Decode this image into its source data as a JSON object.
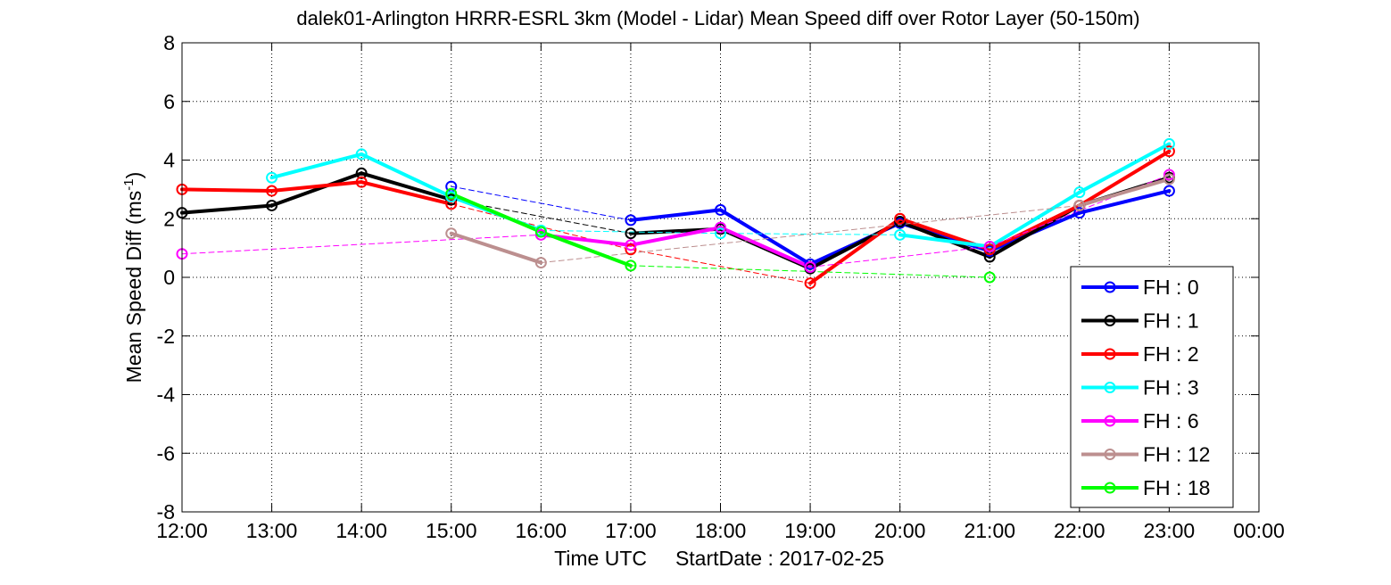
{
  "chart_data": {
    "type": "line",
    "title": "dalek01-Arlington HRRR-ESRL 3km (Model - Lidar) Mean Speed diff over Rotor Layer (50-150m)",
    "xlabel": "Time UTC     StartDate : 2017-02-25",
    "ylabel": "Mean Speed Diff (ms",
    "ylabel_sup": "-1",
    "ylabel_end": ")",
    "xlim": [
      12,
      24
    ],
    "ylim": [
      -8,
      8
    ],
    "x_ticks": [
      12,
      13,
      14,
      15,
      16,
      17,
      18,
      19,
      20,
      21,
      22,
      23,
      24
    ],
    "x_tick_labels": [
      "12:00",
      "13:00",
      "14:00",
      "15:00",
      "16:00",
      "17:00",
      "18:00",
      "19:00",
      "20:00",
      "21:00",
      "22:00",
      "23:00",
      "00:00"
    ],
    "y_ticks": [
      -8,
      -6,
      -4,
      -2,
      0,
      2,
      4,
      6,
      8
    ],
    "y_tick_labels": [
      "-8",
      "-6",
      "-4",
      "-2",
      "0",
      "2",
      "4",
      "6",
      "8"
    ],
    "grid": "dotted",
    "legend_position": "bottom-right",
    "series": [
      {
        "name": "FH : 0",
        "color": "#0000ff",
        "points": [
          [
            15,
            3.1
          ],
          [
            17,
            1.95
          ],
          [
            18,
            2.3
          ],
          [
            19,
            0.45
          ],
          [
            20,
            1.85
          ],
          [
            21,
            0.9
          ],
          [
            22,
            2.2
          ],
          [
            23,
            2.95
          ]
        ]
      },
      {
        "name": "FH : 1",
        "color": "#000000",
        "points": [
          [
            12,
            2.2
          ],
          [
            13,
            2.45
          ],
          [
            14,
            3.55
          ],
          [
            15,
            2.65
          ],
          [
            17,
            1.5
          ],
          [
            18,
            1.65
          ],
          [
            19,
            0.3
          ],
          [
            20,
            1.9
          ],
          [
            21,
            0.7
          ],
          [
            22,
            2.45
          ],
          [
            23,
            3.4
          ]
        ]
      },
      {
        "name": "FH : 2",
        "color": "#ff0000",
        "points": [
          [
            12,
            3.0
          ],
          [
            13,
            2.95
          ],
          [
            14,
            3.25
          ],
          [
            15,
            2.5
          ],
          [
            17,
            0.95
          ],
          [
            19,
            -0.2
          ],
          [
            20,
            2.0
          ],
          [
            21,
            0.95
          ],
          [
            22,
            2.45
          ],
          [
            23,
            4.3
          ]
        ]
      },
      {
        "name": "FH : 3",
        "color": "#00ffff",
        "points": [
          [
            13,
            3.4
          ],
          [
            14,
            4.2
          ],
          [
            15,
            2.75
          ],
          [
            16,
            1.6
          ],
          [
            18,
            1.5
          ],
          [
            20,
            1.45
          ],
          [
            21,
            1.05
          ],
          [
            22,
            2.9
          ],
          [
            23,
            4.55
          ]
        ]
      },
      {
        "name": "FH : 6",
        "color": "#ff00ff",
        "points": [
          [
            12,
            0.8
          ],
          [
            16,
            1.45
          ],
          [
            17,
            1.1
          ],
          [
            18,
            1.7
          ],
          [
            19,
            0.35
          ],
          [
            21,
            1.05
          ],
          [
            23,
            3.5
          ]
        ]
      },
      {
        "name": "FH : 12",
        "color": "#bc8f8f",
        "points": [
          [
            15,
            1.5
          ],
          [
            16,
            0.5
          ],
          [
            22,
            2.45
          ],
          [
            23,
            3.35
          ]
        ]
      },
      {
        "name": "FH : 18",
        "color": "#00ff00",
        "points": [
          [
            15,
            2.85
          ],
          [
            16,
            1.55
          ],
          [
            17,
            0.4
          ],
          [
            21,
            0.0
          ]
        ]
      }
    ]
  }
}
